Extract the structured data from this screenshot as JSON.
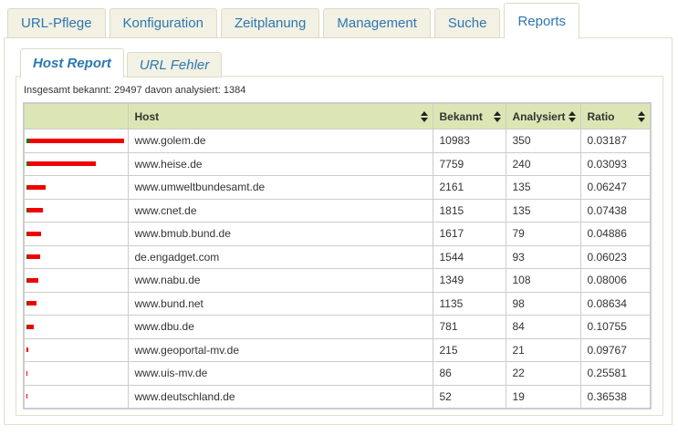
{
  "main_tabs": [
    {
      "label": "URL-Pflege",
      "active": false
    },
    {
      "label": "Konfiguration",
      "active": false
    },
    {
      "label": "Zeitplanung",
      "active": false
    },
    {
      "label": "Management",
      "active": false
    },
    {
      "label": "Suche",
      "active": false
    },
    {
      "label": "Reports",
      "active": true
    }
  ],
  "sub_tabs": [
    {
      "label": "Host Report",
      "active": true
    },
    {
      "label": "URL Fehler",
      "active": false
    }
  ],
  "summary": {
    "text": "Insgesamt bekannt: 29497 davon analysiert: 1384"
  },
  "table": {
    "columns": [
      {
        "label": "",
        "sortable": false
      },
      {
        "label": "Host",
        "sortable": true
      },
      {
        "label": "Bekannt",
        "sortable": true
      },
      {
        "label": "Analysiert",
        "sortable": true
      },
      {
        "label": "Ratio",
        "sortable": true
      }
    ],
    "rows": [
      {
        "host": "www.golem.de",
        "bekannt": 10983,
        "analysiert": 350,
        "ratio": "0.03187"
      },
      {
        "host": "www.heise.de",
        "bekannt": 7759,
        "analysiert": 240,
        "ratio": "0.03093"
      },
      {
        "host": "www.umweltbundesamt.de",
        "bekannt": 2161,
        "analysiert": 135,
        "ratio": "0.06247"
      },
      {
        "host": "www.cnet.de",
        "bekannt": 1815,
        "analysiert": 135,
        "ratio": "0.07438"
      },
      {
        "host": "www.bmub.bund.de",
        "bekannt": 1617,
        "analysiert": 79,
        "ratio": "0.04886"
      },
      {
        "host": "de.engadget.com",
        "bekannt": 1544,
        "analysiert": 93,
        "ratio": "0.06023"
      },
      {
        "host": "www.nabu.de",
        "bekannt": 1349,
        "analysiert": 108,
        "ratio": "0.08006"
      },
      {
        "host": "www.bund.net",
        "bekannt": 1135,
        "analysiert": 98,
        "ratio": "0.08634"
      },
      {
        "host": "www.dbu.de",
        "bekannt": 781,
        "analysiert": 84,
        "ratio": "0.10755"
      },
      {
        "host": "www.geoportal-mv.de",
        "bekannt": 215,
        "analysiert": 21,
        "ratio": "0.09767"
      },
      {
        "host": "www.uis-mv.de",
        "bekannt": 86,
        "analysiert": 22,
        "ratio": "0.25581"
      },
      {
        "host": "www.deutschland.de",
        "bekannt": 52,
        "analysiert": 19,
        "ratio": "0.36538"
      }
    ]
  },
  "colors": {
    "tab_text": "#2d77b0",
    "tab_bg": "#f2f1e3",
    "tab_border": "#dcdcc4",
    "panel_border": "#e0e1c9",
    "table_header_bg": "#dce6b5",
    "bar_known": "#f00000",
    "bar_analyzed": "#007a00"
  }
}
